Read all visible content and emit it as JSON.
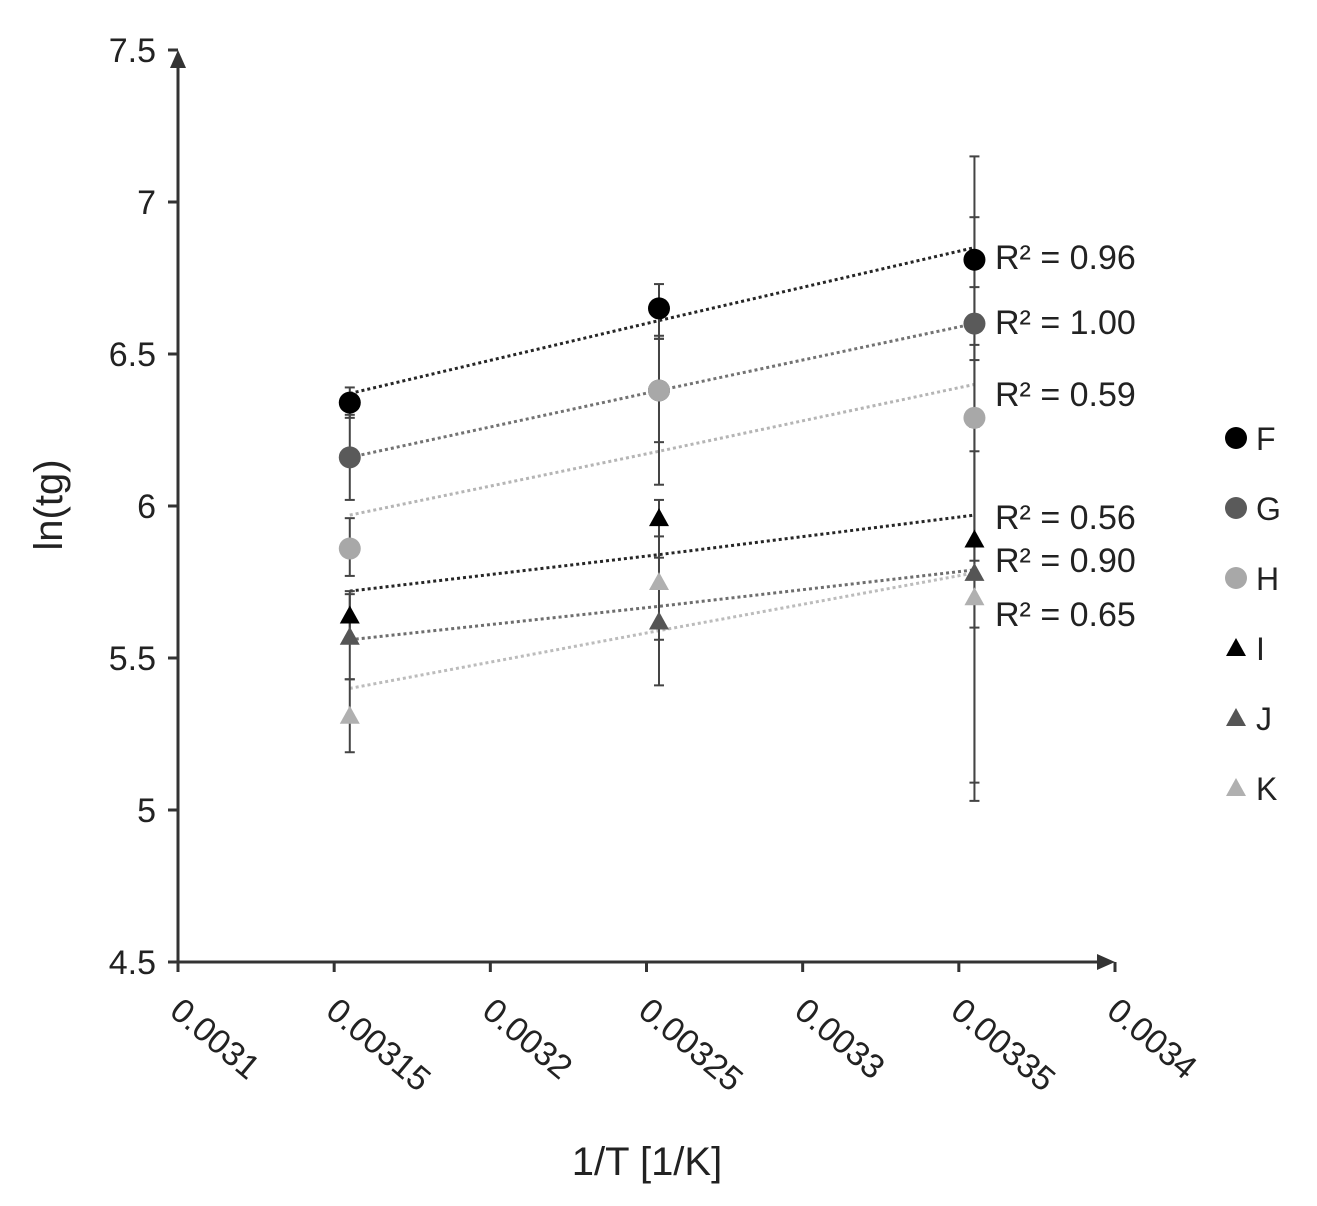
{
  "chart_data": {
    "type": "scatter",
    "xlabel": "1/T [1/K]",
    "ylabel": "ln(tg)",
    "xlim": [
      0.0031,
      0.0034
    ],
    "ylim": [
      4.5,
      7.5
    ],
    "x_ticks": [
      "0.0031",
      "0.00315",
      "0.0032",
      "0.00325",
      "0.0033",
      "0.00335",
      "0.0034"
    ],
    "y_ticks": [
      "4.5",
      "5",
      "5.5",
      "6",
      "6.5",
      "7",
      "7.5"
    ],
    "x": [
      0.003155,
      0.003254,
      0.003355
    ],
    "legend_position": "right",
    "grid": false,
    "series": [
      {
        "name": "F",
        "marker": "circle",
        "color": "#000000",
        "values": [
          6.34,
          6.65,
          6.81
        ],
        "err_low": [
          6.29,
          6.55,
          6.48
        ],
        "err_high": [
          6.39,
          6.73,
          7.15
        ],
        "trend": [
          6.37,
          6.61,
          6.85
        ],
        "r2": "R² = 0.96"
      },
      {
        "name": "G",
        "marker": "circle",
        "color": "#5a5a5a",
        "values": [
          6.16,
          6.38,
          6.6
        ],
        "err_low": [
          6.02,
          6.21,
          6.26
        ],
        "err_high": [
          6.3,
          6.55,
          6.95
        ],
        "trend": [
          6.16,
          6.38,
          6.6
        ],
        "r2": "R² = 1.00"
      },
      {
        "name": "H",
        "marker": "circle",
        "color": "#a8a8a8",
        "values": [
          5.86,
          6.38,
          6.29
        ],
        "err_low": [
          5.77,
          6.07,
          5.82
        ],
        "err_high": [
          5.96,
          6.56,
          6.72
        ],
        "trend": [
          5.97,
          6.18,
          6.4
        ],
        "r2": "R² = 0.59"
      },
      {
        "name": "I",
        "marker": "triangle",
        "color": "#000000",
        "values": [
          5.64,
          5.96,
          5.89
        ],
        "err_low": [
          5.55,
          5.9,
          5.6
        ],
        "err_high": [
          5.72,
          6.02,
          6.18
        ],
        "trend": [
          5.72,
          5.84,
          5.97
        ],
        "r2": "R² = 0.56"
      },
      {
        "name": "J",
        "marker": "triangle",
        "color": "#555555",
        "values": [
          5.57,
          5.62,
          5.78
        ],
        "err_low": [
          5.43,
          5.41,
          5.03
        ],
        "err_high": [
          5.71,
          5.83,
          6.53
        ],
        "trend": [
          5.56,
          5.67,
          5.79
        ],
        "r2": "R² = 0.90"
      },
      {
        "name": "K",
        "marker": "triangle",
        "color": "#b0b0b0",
        "values": [
          5.31,
          5.75,
          5.7
        ],
        "err_low": [
          5.19,
          5.56,
          5.09
        ],
        "err_high": [
          5.43,
          5.94,
          6.31
        ],
        "trend": [
          5.4,
          5.59,
          5.78
        ],
        "r2": "R² = 0.65"
      }
    ]
  }
}
